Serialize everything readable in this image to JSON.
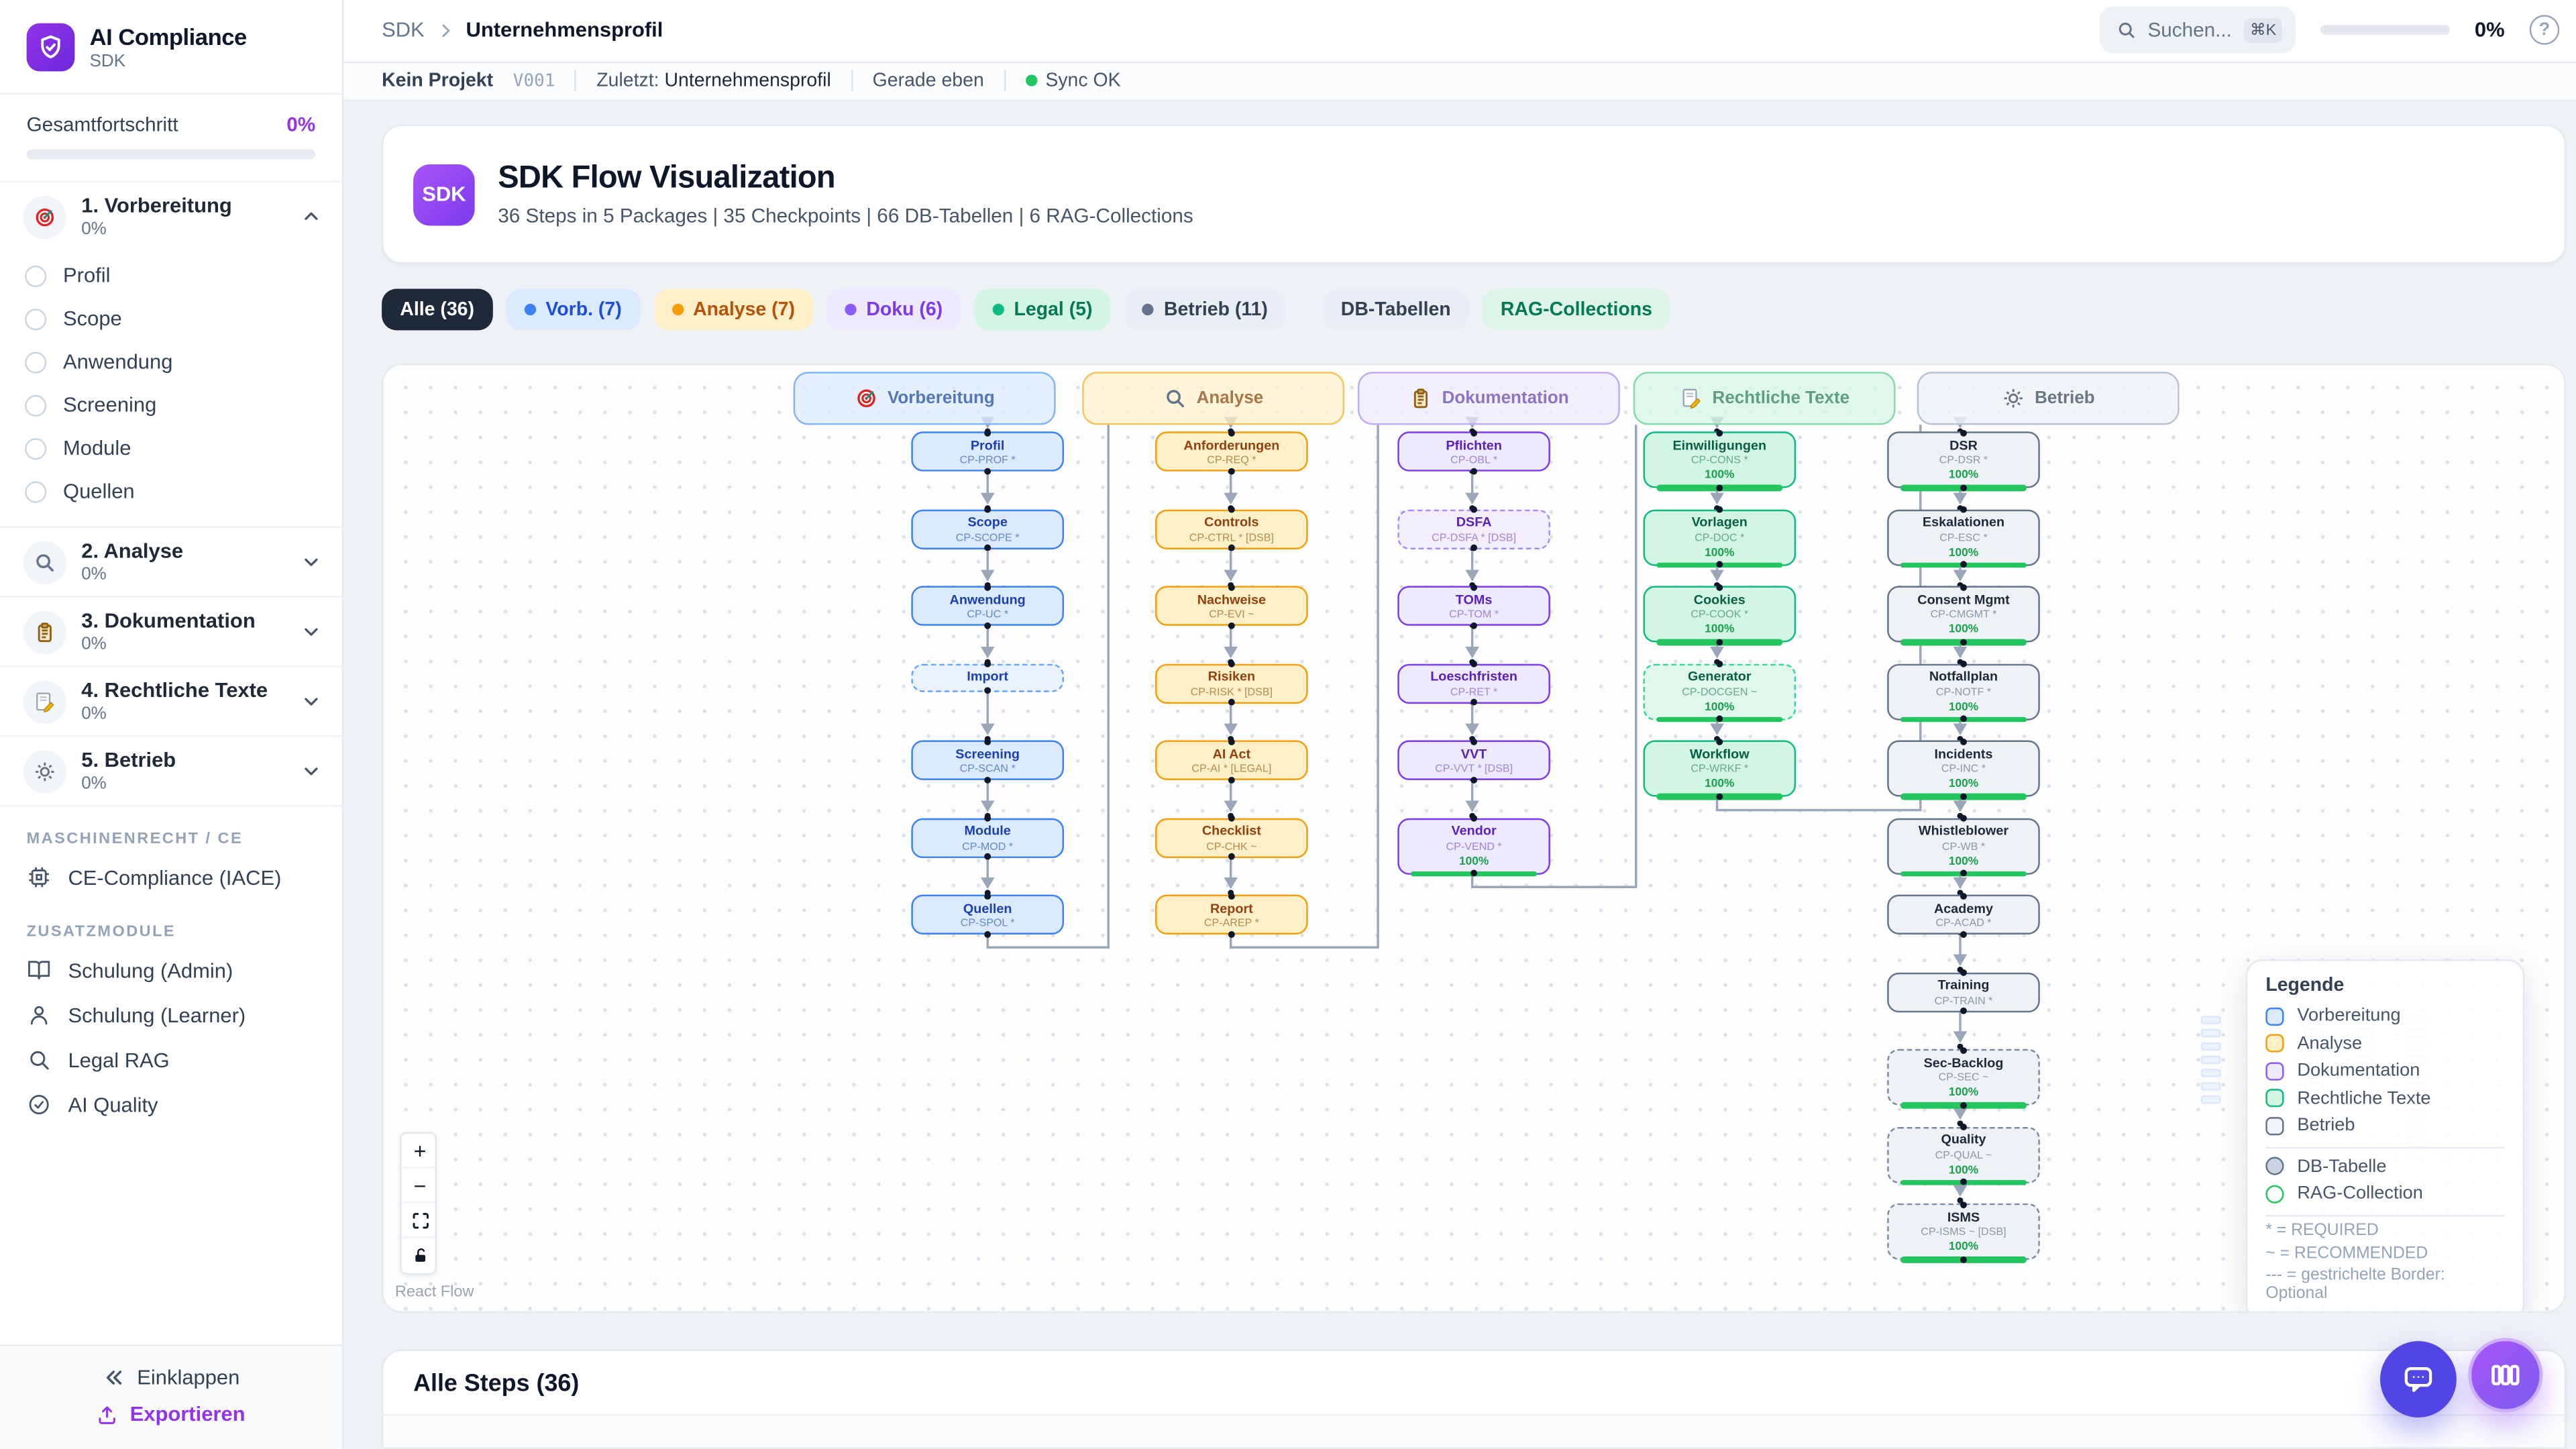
{
  "sidebar": {
    "brand": {
      "title": "AI Compliance",
      "subtitle": "SDK"
    },
    "progress": {
      "label": "Gesamtfortschritt",
      "value": "0%"
    },
    "sections": [
      {
        "label": "1. Vorbereitung",
        "percent": "0%",
        "icon": "target",
        "expanded": true,
        "children": [
          "Profil",
          "Scope",
          "Anwendung",
          "Screening",
          "Module",
          "Quellen"
        ]
      },
      {
        "label": "2. Analyse",
        "percent": "0%",
        "icon": "magnifier"
      },
      {
        "label": "3. Dokumentation",
        "percent": "0%",
        "icon": "clipboard"
      },
      {
        "label": "4. Rechtliche Texte",
        "percent": "0%",
        "icon": "memo"
      },
      {
        "label": "5. Betrieb",
        "percent": "0%",
        "icon": "gear"
      }
    ],
    "groups": [
      {
        "heading": "MASCHINENRECHT / CE",
        "items": [
          {
            "label": "CE-Compliance (IACE)",
            "icon": "cpu"
          }
        ]
      },
      {
        "heading": "ZUSATZMODULE",
        "items": [
          {
            "label": "Schulung (Admin)",
            "icon": "book"
          },
          {
            "label": "Schulung (Learner)",
            "icon": "user"
          },
          {
            "label": "Legal RAG",
            "icon": "search"
          },
          {
            "label": "AI Quality",
            "icon": "check-circle"
          }
        ]
      }
    ],
    "footer": {
      "collapse": "Einklappen",
      "export": "Exportieren"
    }
  },
  "topbar": {
    "breadcrumb": {
      "root": "SDK",
      "current": "Unternehmensprofil"
    },
    "search": {
      "placeholder": "Suchen...",
      "shortcut": "⌘K"
    },
    "progress_value": "0%"
  },
  "statusbar": {
    "project": "Kein Projekt",
    "version": "V001",
    "last_label": "Zuletzt:",
    "last_value": "Unternehmensprofil",
    "updated": "Gerade eben",
    "sync": "Sync OK"
  },
  "hero": {
    "badge": "SDK",
    "title": "SDK Flow Visualization",
    "subtitle": "36 Steps in 5 Packages | 35 Checkpoints | 66 DB-Tabellen | 6 RAG-Collections"
  },
  "filters": [
    {
      "label": "Alle (36)",
      "kind": "all"
    },
    {
      "label": "Vorb. (7)",
      "kind": "vorbereitung",
      "dot": true
    },
    {
      "label": "Analyse (7)",
      "kind": "analyse",
      "dot": true
    },
    {
      "label": "Doku (6)",
      "kind": "doku",
      "dot": true
    },
    {
      "label": "Legal (5)",
      "kind": "legal",
      "dot": true
    },
    {
      "label": "Betrieb (11)",
      "kind": "betrieb",
      "dot": true
    },
    {
      "label": "DB-Tabellen",
      "kind": "db",
      "sep_before": true
    },
    {
      "label": "RAG-Collections",
      "kind": "rag"
    }
  ],
  "flow": {
    "columns": [
      {
        "id": "vorbereitung",
        "label": "Vorbereitung",
        "icon": "target",
        "nodes": [
          {
            "title": "Profil",
            "code": "CP-PROF *"
          },
          {
            "title": "Scope",
            "code": "CP-SCOPE *"
          },
          {
            "title": "Anwendung",
            "code": "CP-UC *"
          },
          {
            "title": "Import",
            "dashed": true
          },
          {
            "title": "Screening",
            "code": "CP-SCAN *"
          },
          {
            "title": "Module",
            "code": "CP-MOD *"
          },
          {
            "title": "Quellen",
            "code": "CP-SPOL *"
          }
        ]
      },
      {
        "id": "analyse",
        "label": "Analyse",
        "icon": "magnifier",
        "nodes": [
          {
            "title": "Anforderungen",
            "code": "CP-REQ *"
          },
          {
            "title": "Controls",
            "code": "CP-CTRL * [DSB]"
          },
          {
            "title": "Nachweise",
            "code": "CP-EVI ~"
          },
          {
            "title": "Risiken",
            "code": "CP-RISK * [DSB]"
          },
          {
            "title": "AI Act",
            "code": "CP-AI * [LEGAL]"
          },
          {
            "title": "Checklist",
            "code": "CP-CHK ~"
          },
          {
            "title": "Report",
            "code": "CP-AREP *"
          }
        ]
      },
      {
        "id": "doku",
        "label": "Dokumentation",
        "icon": "clipboard",
        "nodes": [
          {
            "title": "Pflichten",
            "code": "CP-OBL *"
          },
          {
            "title": "DSFA",
            "code": "CP-DSFA * [DSB]",
            "dashed": true
          },
          {
            "title": "TOMs",
            "code": "CP-TOM *"
          },
          {
            "title": "Loeschfristen",
            "code": "CP-RET *"
          },
          {
            "title": "VVT",
            "code": "CP-VVT * [DSB]"
          },
          {
            "title": "Vendor",
            "code": "CP-VEND *",
            "progress": "100%"
          }
        ]
      },
      {
        "id": "legal",
        "label": "Rechtliche Texte",
        "icon": "memo",
        "nodes": [
          {
            "title": "Einwilligungen",
            "code": "CP-CONS *",
            "progress": "100%"
          },
          {
            "title": "Vorlagen",
            "code": "CP-DOC *",
            "progress": "100%"
          },
          {
            "title": "Cookies",
            "code": "CP-COOK *",
            "progress": "100%"
          },
          {
            "title": "Generator",
            "code": "CP-DOCGEN ~",
            "progress": "100%",
            "dashed": true
          },
          {
            "title": "Workflow",
            "code": "CP-WRKF *",
            "progress": "100%"
          }
        ]
      },
      {
        "id": "betrieb",
        "label": "Betrieb",
        "icon": "gear",
        "nodes": [
          {
            "title": "DSR",
            "code": "CP-DSR *",
            "progress": "100%"
          },
          {
            "title": "Eskalationen",
            "code": "CP-ESC *",
            "progress": "100%"
          },
          {
            "title": "Consent Mgmt",
            "code": "CP-CMGMT *",
            "progress": "100%"
          },
          {
            "title": "Notfallplan",
            "code": "CP-NOTF *",
            "progress": "100%"
          },
          {
            "title": "Incidents",
            "code": "CP-INC *",
            "progress": "100%"
          },
          {
            "title": "Whistleblower",
            "code": "CP-WB *",
            "progress": "100%"
          },
          {
            "title": "Academy",
            "code": "CP-ACAD *"
          },
          {
            "title": "Training",
            "code": "CP-TRAIN *"
          },
          {
            "title": "Sec-Backlog",
            "code": "CP-SEC ~",
            "progress": "100%",
            "dashed": true
          },
          {
            "title": "Quality",
            "code": "CP-QUAL ~",
            "progress": "100%",
            "dashed": true
          },
          {
            "title": "ISMS",
            "code": "CP-ISMS ~ [DSB]",
            "progress": "100%",
            "dashed": true
          }
        ]
      }
    ],
    "legend": {
      "title": "Legende",
      "packages": [
        {
          "id": "vorbereitung",
          "label": "Vorbereitung",
          "border": "#3b82f6",
          "fill": "#dbeafe"
        },
        {
          "id": "analyse",
          "label": "Analyse",
          "border": "#f59e0b",
          "fill": "#fdf0c8"
        },
        {
          "id": "doku",
          "label": "Dokumentation",
          "border": "#8b5cf6",
          "fill": "#ede9fe"
        },
        {
          "id": "legal",
          "label": "Rechtliche Texte",
          "border": "#10b981",
          "fill": "#d3f5e3"
        },
        {
          "id": "betrieb",
          "label": "Betrieb",
          "border": "#64748b",
          "fill": "#f1f5f9"
        }
      ],
      "shapes": [
        {
          "id": "db",
          "label": "DB-Tabelle",
          "border": "#64748b",
          "fill": "#cbd5e1"
        },
        {
          "id": "rag",
          "label": "RAG-Collection",
          "border": "#22c55e",
          "fill": "#ffffff"
        }
      ],
      "notes": [
        "* = REQUIRED",
        "~ = RECOMMENDED",
        "--- = gestrichelte Border: Optional"
      ]
    },
    "attribution": "React Flow"
  },
  "steps_panel": {
    "title": "Alle Steps (36)"
  },
  "colors": {
    "accent": "#9333ea",
    "sync_ok": "#22c55e",
    "progress_green": "#22c55e",
    "chip_active_bg": "#1e293b"
  }
}
